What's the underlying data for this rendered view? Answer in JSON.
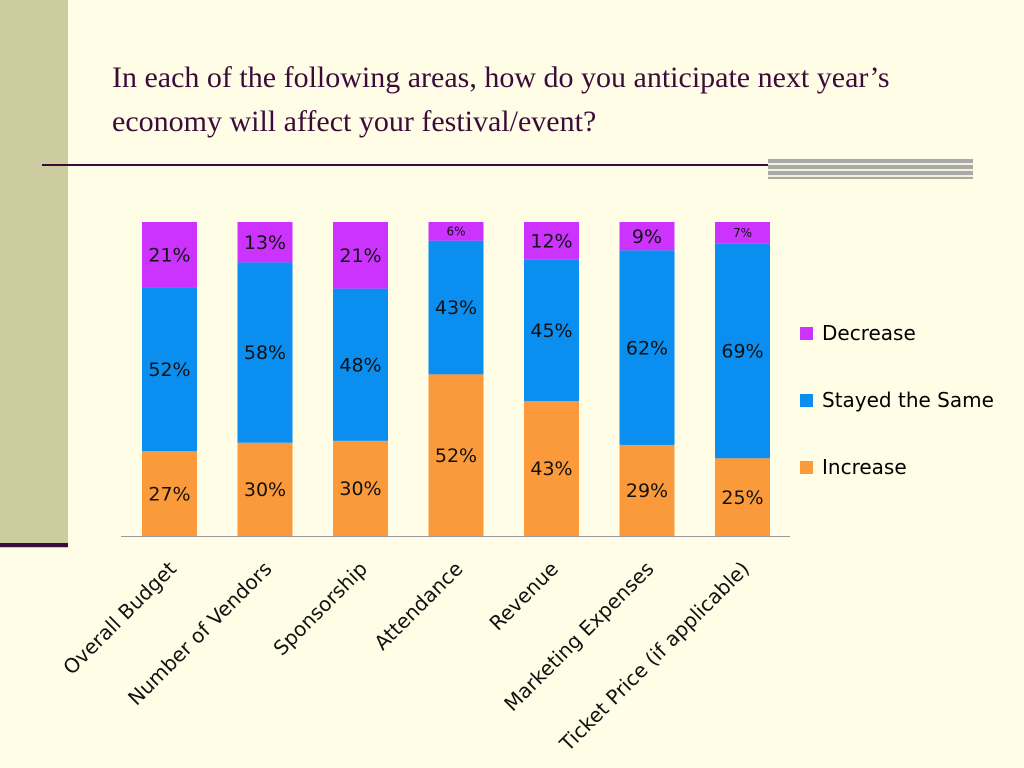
{
  "title": "In each of the following areas, how do you anticipate next year’s economy will affect your festival/event?",
  "colors": {
    "decrease": "#cc33ff",
    "same": "#0a8ef0",
    "increase": "#fb9a3a"
  },
  "chart_data": {
    "type": "bar",
    "stacked": true,
    "categories": [
      "Overall Budget",
      "Number of Vendors",
      "Sponsorship",
      "Attendance",
      "Revenue",
      "Marketing Expenses",
      "Ticket Price (if applicable)"
    ],
    "series": [
      {
        "name": "Increase",
        "values": [
          27,
          30,
          30,
          52,
          43,
          29,
          25
        ],
        "labels": [
          "27%",
          "30%",
          "30%",
          "52%",
          "43%",
          "29%",
          "25%"
        ]
      },
      {
        "name": "Stayed the Same",
        "values": [
          52,
          58,
          48,
          43,
          45,
          62,
          69
        ],
        "labels": [
          "52%",
          "58%",
          "48%",
          "43%",
          "45%",
          "62%",
          "69%"
        ]
      },
      {
        "name": "Decrease",
        "values": [
          21,
          13,
          21,
          6,
          12,
          9,
          7
        ],
        "labels": [
          "21%",
          "13%",
          "21%",
          "6%",
          "12%",
          "9%",
          "7%"
        ]
      }
    ],
    "ylim": [
      0,
      100
    ],
    "legend_position": "right",
    "grid": false
  },
  "legend": [
    {
      "label": "Decrease",
      "color": "#cc33ff"
    },
    {
      "label": "Stayed the Same",
      "color": "#0a8ef0"
    },
    {
      "label": "Increase",
      "color": "#fb9a3a"
    }
  ]
}
